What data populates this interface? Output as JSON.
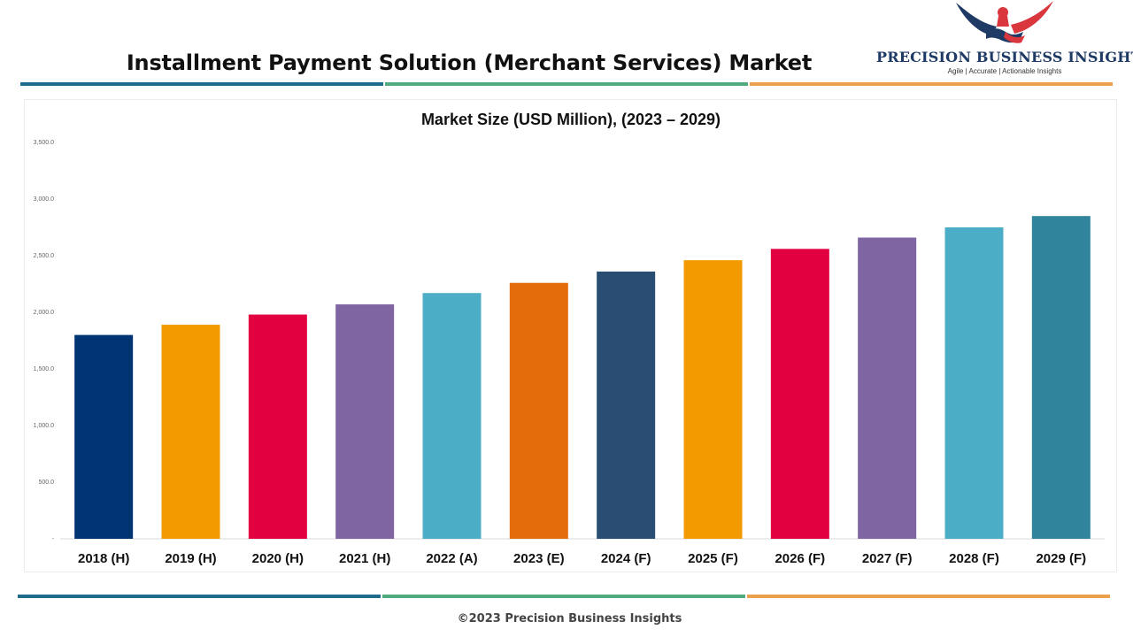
{
  "header": {
    "title": "Installment Payment Solution (Merchant Services) Market"
  },
  "brand": {
    "name": "PRECISION BUSINESS INSIGHTS",
    "tagline": "Agile | Accurate | Actionable Insights",
    "navy": "#1f3a64",
    "red": "#d9363e"
  },
  "rules": {
    "colors": [
      "#1e6b8c",
      "#4faa7e",
      "#eaa04d"
    ]
  },
  "footer": {
    "copyright": "©2023 Precision Business Insights"
  },
  "chart_data": {
    "type": "bar",
    "title": "Market Size (USD Million), (2023 – 2029)",
    "xlabel": "",
    "ylabel": "",
    "ylim": [
      0,
      3500
    ],
    "yticks": [
      0,
      500,
      1000,
      1500,
      2000,
      2500,
      3000,
      3500
    ],
    "ytick_labels": [
      "-",
      "500.0",
      "1,000.0",
      "1,500.0",
      "2,000.0",
      "2,500.0",
      "3,000.0",
      "3,500.0"
    ],
    "grid": false,
    "legend": "none",
    "categories": [
      "2018 (H)",
      "2019 (H)",
      "2020 (H)",
      "2021 (H)",
      "2022 (A)",
      "2023 (E)",
      "2024 (F)",
      "2025 (F)",
      "2026 (F)",
      "2027 (F)",
      "2028 (F)",
      "2029 (F)"
    ],
    "values": [
      1800,
      1890,
      1980,
      2070,
      2170,
      2260,
      2360,
      2460,
      2560,
      2660,
      2750,
      2850
    ],
    "colors": [
      "#003473",
      "#f29a00",
      "#e30040",
      "#7f65a1",
      "#4badc6",
      "#e36c0a",
      "#2a4d73",
      "#f29a00",
      "#e30040",
      "#7f65a1",
      "#4badc6",
      "#30849c"
    ]
  }
}
